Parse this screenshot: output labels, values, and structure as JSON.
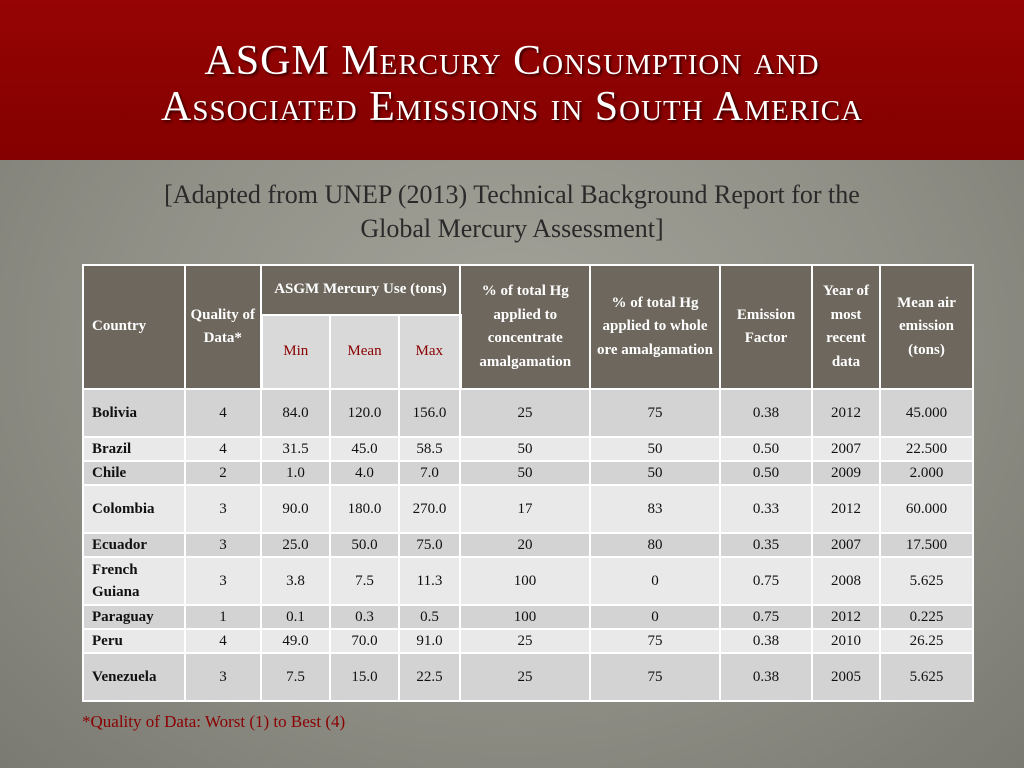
{
  "title": {
    "line1": "ASGM Mercury Consumption and",
    "line2": "Associated Emissions in South America"
  },
  "subtitle": {
    "line1": "[Adapted from UNEP (2013) Technical Background Report for the",
    "line2": "Global Mercury Assessment]"
  },
  "table": {
    "headers": {
      "country": "Country",
      "quality": "Quality of Data*",
      "asgm_use": "ASGM Mercury Use (tons)",
      "min": "Min",
      "mean": "Mean",
      "max": "Max",
      "pct_conc": "% of total Hg applied to concentrate amalgamation",
      "pct_whole": "% of total Hg applied to whole ore amalgamation",
      "emission_factor": "Emission Factor",
      "year": "Year of most recent data",
      "mean_air": "Mean air emission (tons)"
    },
    "rows": [
      {
        "country": "Bolivia",
        "quality": "4",
        "min": "84.0",
        "mean": "120.0",
        "max": "156.0",
        "pct_conc": "25",
        "pct_whole": "75",
        "ef": "0.38",
        "year": "2012",
        "emission": "45.000"
      },
      {
        "country": "Brazil",
        "quality": "4",
        "min": "31.5",
        "mean": "45.0",
        "max": "58.5",
        "pct_conc": "50",
        "pct_whole": "50",
        "ef": "0.50",
        "year": "2007",
        "emission": "22.500"
      },
      {
        "country": "Chile",
        "quality": "2",
        "min": "1.0",
        "mean": "4.0",
        "max": "7.0",
        "pct_conc": "50",
        "pct_whole": "50",
        "ef": "0.50",
        "year": "2009",
        "emission": "2.000"
      },
      {
        "country": "Colombia",
        "quality": "3",
        "min": "90.0",
        "mean": "180.0",
        "max": "270.0",
        "pct_conc": "17",
        "pct_whole": "83",
        "ef": "0.33",
        "year": "2012",
        "emission": "60.000"
      },
      {
        "country": "Ecuador",
        "quality": "3",
        "min": "25.0",
        "mean": "50.0",
        "max": "75.0",
        "pct_conc": "20",
        "pct_whole": "80",
        "ef": "0.35",
        "year": "2007",
        "emission": "17.500"
      },
      {
        "country": "French Guiana",
        "quality": "3",
        "min": "3.8",
        "mean": "7.5",
        "max": "11.3",
        "pct_conc": "100",
        "pct_whole": "0",
        "ef": "0.75",
        "year": "2008",
        "emission": "5.625"
      },
      {
        "country": "Paraguay",
        "quality": "1",
        "min": "0.1",
        "mean": "0.3",
        "max": "0.5",
        "pct_conc": "100",
        "pct_whole": "0",
        "ef": "0.75",
        "year": "2012",
        "emission": "0.225"
      },
      {
        "country": "Peru",
        "quality": "4",
        "min": "49.0",
        "mean": "70.0",
        "max": "91.0",
        "pct_conc": "25",
        "pct_whole": "75",
        "ef": "0.38",
        "year": "2010",
        "emission": "26.25"
      },
      {
        "country": "Venezuela",
        "quality": "3",
        "min": "7.5",
        "mean": "15.0",
        "max": "22.5",
        "pct_conc": "25",
        "pct_whole": "75",
        "ef": "0.38",
        "year": "2005",
        "emission": "5.625"
      }
    ]
  },
  "footnote": "*Quality of Data:  Worst (1) to Best (4)",
  "colors": {
    "title_band": "#8b0000",
    "header_fill": "#6d675d",
    "row_dark": "#d3d3d3",
    "row_light": "#e9e9e9",
    "footnote_text": "#8b0000"
  }
}
